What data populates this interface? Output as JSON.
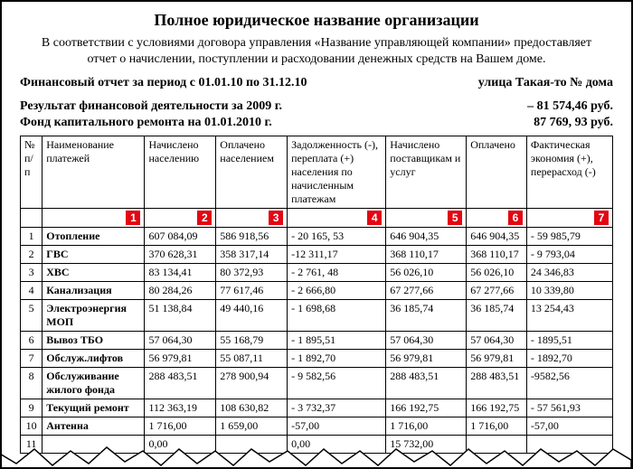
{
  "heading": "Полное юридическое название организации",
  "intro": "В соответствии с условиями договора управления «Название управляющей компании» предоставляет отчет о начислении, поступлении и расходовании денежных средств на Вашем доме.",
  "line1_left": "Финансовый отчет за период с 01.01.10 по 31.12.10",
  "line1_right": "улица Такая-то № дома",
  "line2_left": "Результат финансовой деятельности за 2009 г.",
  "line2_right": "– 81 574,46 руб.",
  "line3_left": "Фонд капитального ремонта на 01.01.2010 г.",
  "line3_right": "87 769, 93 руб.",
  "table": {
    "headers": {
      "c0": "№ п/п",
      "c1": "Наименование платежей",
      "c2": "Начислено населению",
      "c3": "Оплачено населением",
      "c4": "Задолженность (-), переплата (+) населения по начисленным платежам",
      "c5": "Начислено поставщикам и услуг",
      "c6": "Оплачено",
      "c7": "Фактическая экономия (+), перерасход (-)"
    },
    "markers": [
      "1",
      "2",
      "3",
      "4",
      "5",
      "6",
      "7"
    ],
    "rows": [
      {
        "n": "1",
        "name": "Отопление",
        "bold": true,
        "v": [
          "607 084,09",
          "586 918,56",
          "- 20 165, 53",
          "646 904,35",
          "646 904,35",
          "- 59 985,79"
        ]
      },
      {
        "n": "2",
        "name": "ГВС",
        "bold": true,
        "v": [
          "370 628,31",
          "358 317,14",
          "-12 311,17",
          "368 110,17",
          "368 110,17",
          "- 9 793,04"
        ]
      },
      {
        "n": "3",
        "name": "ХВС",
        "bold": true,
        "v": [
          "83 134,41",
          "80 372,93",
          "- 2 761, 48",
          "56 026,10",
          "56 026,10",
          "24 346,83"
        ]
      },
      {
        "n": "4",
        "name": "Канализация",
        "bold": true,
        "v": [
          "80 284,26",
          "77 617,46",
          "- 2 666,80",
          "67 277,66",
          "67 277,66",
          "10 339,80"
        ]
      },
      {
        "n": "5",
        "name": "Электроэнергия МОП",
        "bold": true,
        "v": [
          "51 138,84",
          "49 440,16",
          "- 1 698,68",
          "36 185,74",
          "36 185,74",
          "13 254,43"
        ]
      },
      {
        "n": "6",
        "name": "Вывоз ТБО",
        "bold": true,
        "v": [
          "57 064,30",
          "55 168,79",
          "- 1 895,51",
          "57 064,30",
          "57 064,30",
          "- 1895,51"
        ]
      },
      {
        "n": "7",
        "name": "Обслуж.лифтов",
        "bold": true,
        "v": [
          "56 979,81",
          "55 087,11",
          "- 1 892,70",
          "56 979,81",
          "56 979,81",
          "- 1892,70"
        ]
      },
      {
        "n": "8",
        "name": "Обслуживание жилого фонда",
        "bold": true,
        "v": [
          "288 483,51",
          "278 900,94",
          "- 9 582,56",
          "288 483,51",
          "288 483,51",
          "-9582,56"
        ]
      },
      {
        "n": "9",
        "name": "Текущий ремонт",
        "bold": true,
        "v": [
          "112 363,19",
          "108 630,82",
          "- 3 732,37",
          "166 192,75",
          "166 192,75",
          "- 57 561,93"
        ]
      },
      {
        "n": "10",
        "name": "Антенна",
        "bold": true,
        "v": [
          "1 716,00",
          "1 659,00",
          "-57,00",
          "1 716,00",
          "1 716,00",
          "-57,00"
        ]
      },
      {
        "n": "11",
        "name": "",
        "bold": false,
        "v": [
          "0,00",
          "",
          "0,00",
          "15 732,00",
          "",
          ""
        ]
      }
    ]
  },
  "style": {
    "marker_bg": "#e30613",
    "marker_fg": "#ffffff",
    "border": "#000000",
    "font": "Times New Roman"
  }
}
